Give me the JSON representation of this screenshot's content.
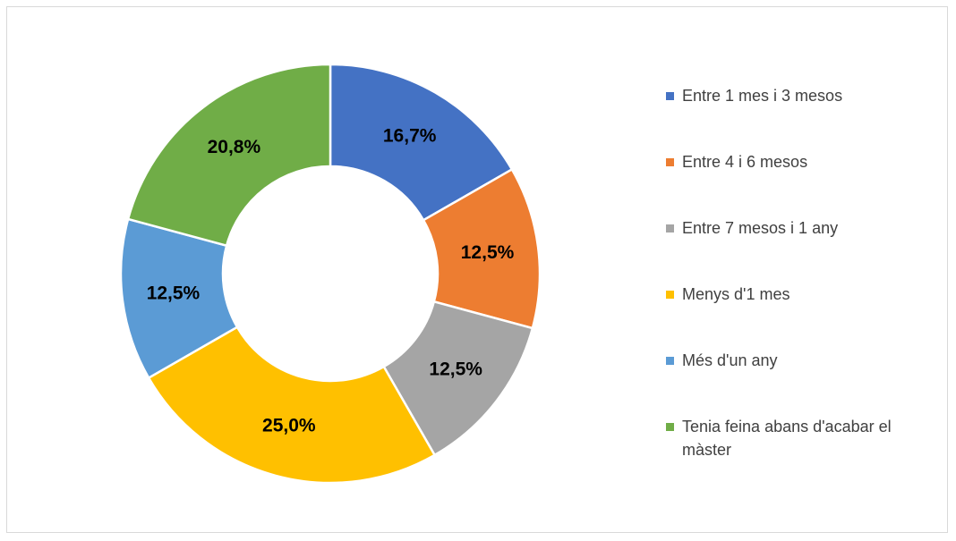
{
  "chart_data": {
    "type": "donut",
    "categories": [
      "Entre 1 mes i 3 mesos",
      "Entre 4 i 6 mesos",
      "Entre 7 mesos i 1 any",
      "Menys d'1 mes",
      "Més d'un any",
      "Tenia feina abans d'acabar el màster"
    ],
    "values": [
      16.7,
      12.5,
      12.5,
      25.0,
      12.5,
      20.8
    ],
    "value_labels": [
      "16,7%",
      "12,5%",
      "12,5%",
      "25,0%",
      "12,5%",
      "20,8%"
    ],
    "colors": [
      "#4472c4",
      "#ed7d31",
      "#a5a5a5",
      "#ffc000",
      "#5b9bd5",
      "#70ad47"
    ],
    "legend": "right"
  }
}
